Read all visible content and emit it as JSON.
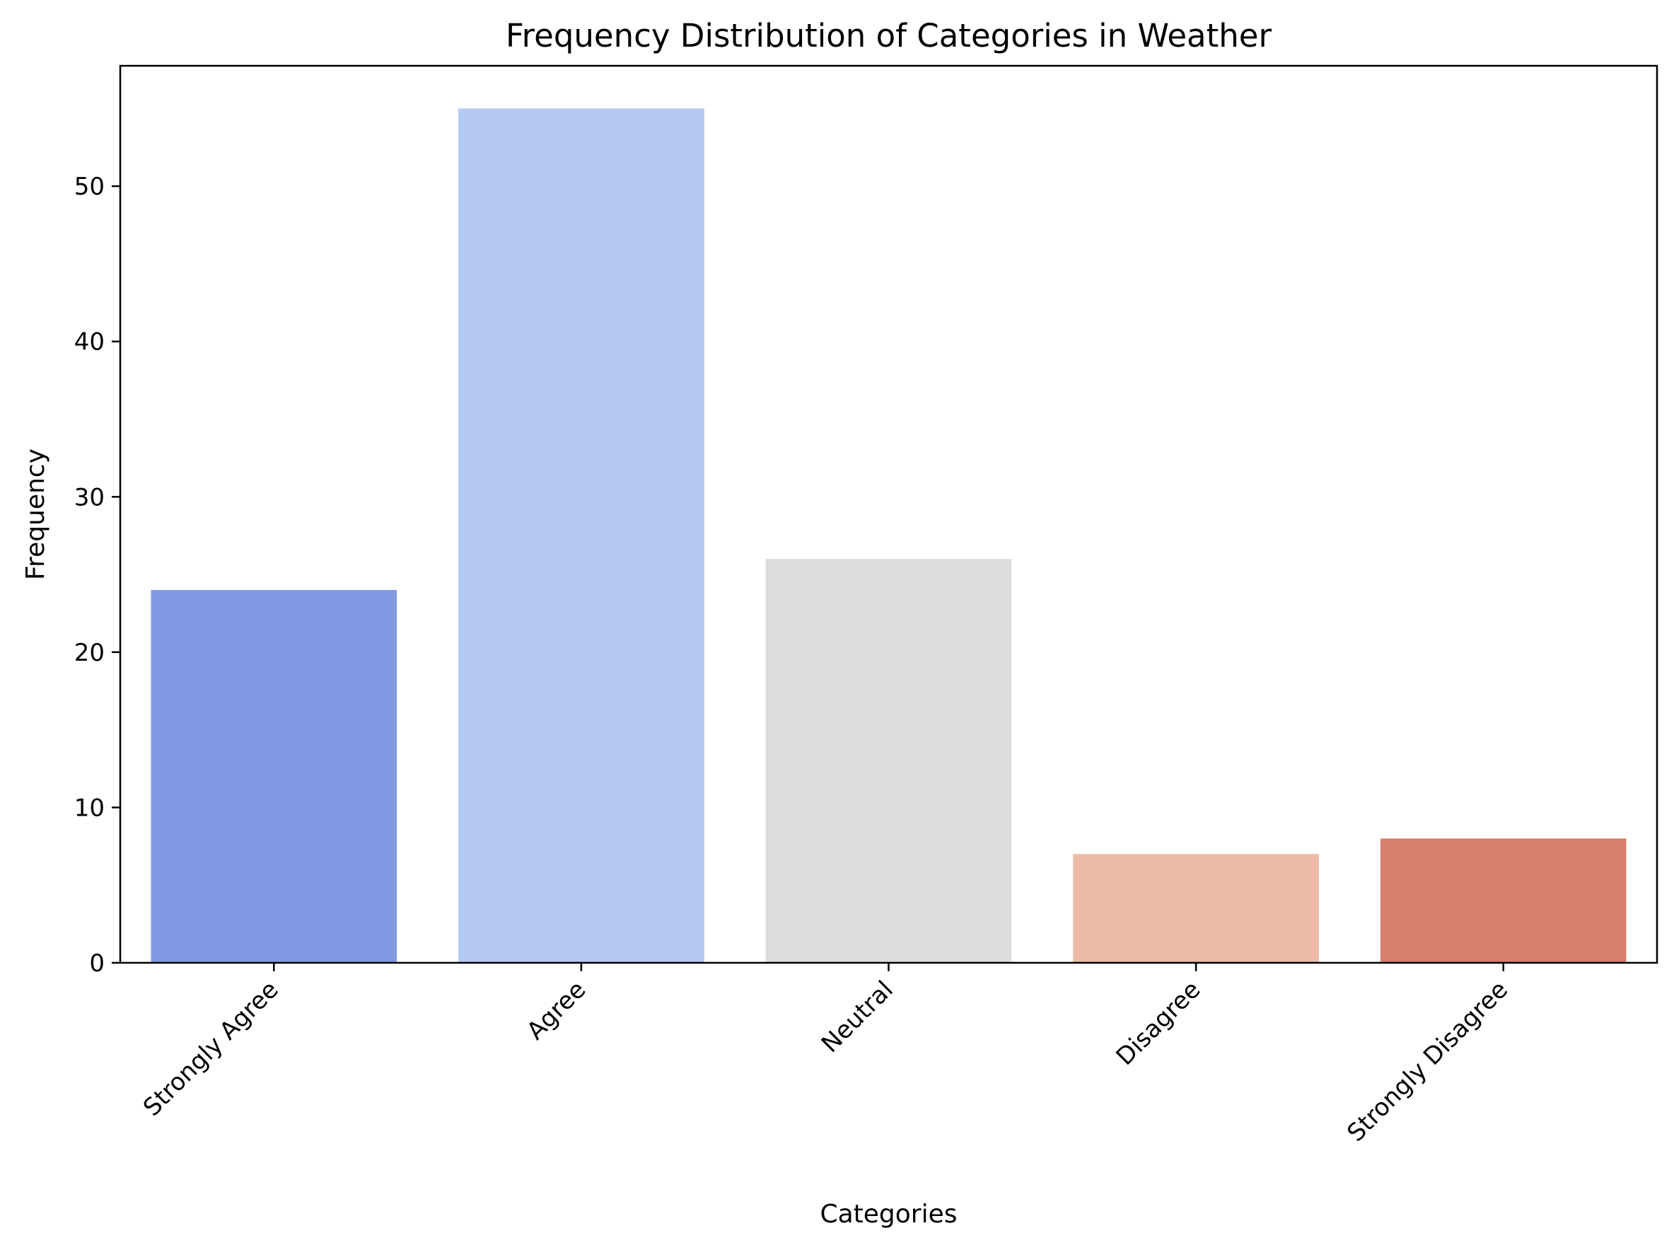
{
  "chart_data": {
    "type": "bar",
    "title": "Frequency Distribution of Categories in Weather",
    "xlabel": "Categories",
    "ylabel": "Frequency",
    "categories": [
      "Strongly Agree",
      "Agree",
      "Neutral",
      "Disagree",
      "Strongly Disagree"
    ],
    "values": [
      24,
      55,
      26,
      7,
      8
    ],
    "colors": [
      "#8199e2",
      "#b6c9f2",
      "#dcdcdc",
      "#ecbca7",
      "#d57f6c"
    ],
    "ylim": [
      0,
      57.75
    ],
    "yticks": [
      0,
      10,
      20,
      30,
      40,
      50
    ],
    "grid": false,
    "legend": "none"
  }
}
